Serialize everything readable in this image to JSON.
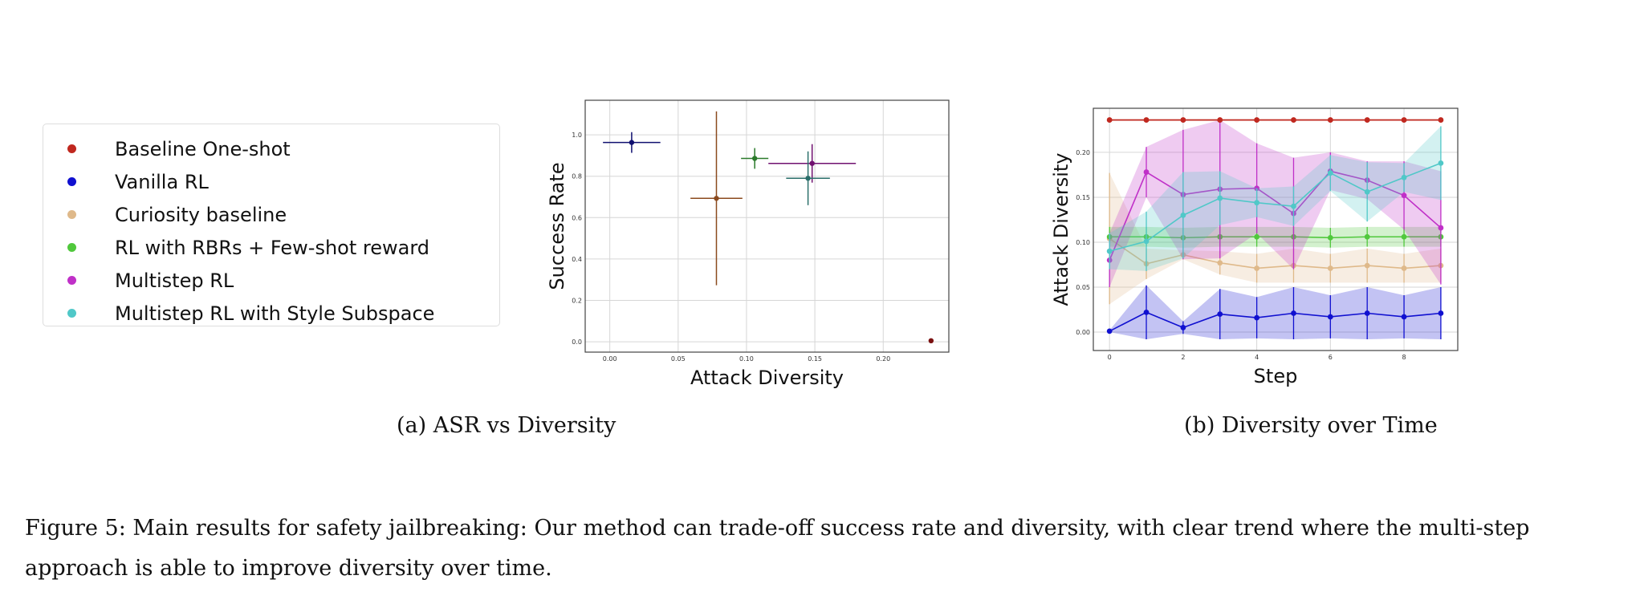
{
  "legend": [
    {
      "label": "Baseline One-shot",
      "color": "#c0281f"
    },
    {
      "label": "Vanilla RL",
      "color": "#1010d0"
    },
    {
      "label": "Curiosity baseline",
      "color": "#dfb98a"
    },
    {
      "label": "RL with RBRs + Few-shot reward",
      "color": "#50c83c"
    },
    {
      "label": "Multistep RL",
      "color": "#c030c8"
    },
    {
      "label": "Multistep RL with Style Subspace",
      "color": "#50c8c8"
    }
  ],
  "captions": {
    "a": "(a) ASR vs Diversity",
    "b": "(b) Diversity over Time",
    "figure": "Figure 5: Main results for safety jailbreaking: Our method can trade-off success rate and diversity, with clear trend where the multi-step approach is able to improve diversity over time."
  },
  "chart_data": [
    {
      "type": "scatter",
      "title": "ASR vs Diversity",
      "xlabel": "Attack Diversity",
      "ylabel": "Success Rate",
      "xlim": [
        -0.018,
        0.248
      ],
      "ylim": [
        -0.05,
        1.167
      ],
      "xticks": [
        0.0,
        0.05,
        0.1,
        0.15,
        0.2
      ],
      "xtick_labels": [
        "0.00",
        "0.05",
        "0.10",
        "0.15",
        "0.20"
      ],
      "yticks": [
        0.0,
        0.2,
        0.4,
        0.6,
        0.8,
        1.0
      ],
      "ytick_labels": [
        "0.0",
        "0.2",
        "0.4",
        "0.6",
        "0.8",
        "1.0"
      ],
      "grid": true,
      "points": [
        {
          "series": "Baseline One-shot",
          "x": 0.235,
          "y": 0.005,
          "xerr": 0,
          "yerr": 0,
          "color": "#7a1010"
        },
        {
          "series": "Vanilla RL",
          "x": 0.016,
          "y": 0.963,
          "xerr": 0.021,
          "yerr": 0.05,
          "color": "#101070"
        },
        {
          "series": "Curiosity baseline",
          "x": 0.078,
          "y": 0.693,
          "xerr": 0.019,
          "yerr": 0.42,
          "color": "#8b4a1e"
        },
        {
          "series": "RL with RBRs + Few-shot reward",
          "x": 0.106,
          "y": 0.886,
          "xerr": 0.01,
          "yerr": 0.05,
          "color": "#2a7a2a"
        },
        {
          "series": "Multistep RL",
          "x": 0.148,
          "y": 0.862,
          "xerr": 0.032,
          "yerr": 0.093,
          "color": "#701070"
        },
        {
          "series": "Multistep RL with Style Subspace",
          "x": 0.145,
          "y": 0.79,
          "xerr": 0.016,
          "yerr": 0.13,
          "color": "#2a6e6a"
        }
      ]
    },
    {
      "type": "line",
      "title": "Diversity over Time",
      "xlabel": "Step",
      "ylabel": "Attack Diversity",
      "xlim": [
        -0.44,
        9.46
      ],
      "ylim": [
        -0.0205,
        0.249
      ],
      "xticks": [
        0,
        2,
        4,
        6,
        8
      ],
      "xtick_labels": [
        "0",
        "2",
        "4",
        "6",
        "8"
      ],
      "yticks": [
        0.0,
        0.05,
        0.1,
        0.15,
        0.2
      ],
      "ytick_labels": [
        "0.00",
        "0.05",
        "0.10",
        "0.15",
        "0.20"
      ],
      "grid": true,
      "x": [
        0,
        1,
        2,
        3,
        4,
        5,
        6,
        7,
        8,
        9
      ],
      "series": [
        {
          "name": "Vanilla RL",
          "color": "#1010d0",
          "values": [
            0.001,
            0.022,
            0.005,
            0.02,
            0.016,
            0.021,
            0.017,
            0.021,
            0.017,
            0.021
          ],
          "err": [
            0.001,
            0.03,
            0.007,
            0.028,
            0.023,
            0.029,
            0.024,
            0.029,
            0.024,
            0.029
          ]
        },
        {
          "name": "Curiosity baseline",
          "color": "#dfb98a",
          "values": [
            0.104,
            0.076,
            0.086,
            0.077,
            0.071,
            0.074,
            0.071,
            0.074,
            0.071,
            0.074
          ],
          "err": [
            0.073,
            0.017,
            0.005,
            0.013,
            0.016,
            0.019,
            0.016,
            0.019,
            0.016,
            0.019
          ]
        },
        {
          "name": "RL with RBRs + Few-shot reward",
          "color": "#50c83c",
          "values": [
            0.106,
            0.106,
            0.105,
            0.106,
            0.106,
            0.106,
            0.105,
            0.106,
            0.106,
            0.106
          ],
          "err": [
            0.011,
            0.011,
            0.011,
            0.011,
            0.011,
            0.011,
            0.011,
            0.011,
            0.011,
            0.011
          ]
        },
        {
          "name": "Multistep RL",
          "color": "#c030c8",
          "values": [
            0.08,
            0.178,
            0.153,
            0.159,
            0.16,
            0.132,
            0.179,
            0.169,
            0.152,
            0.116
          ],
          "err": [
            0.03,
            0.028,
            0.072,
            0.077,
            0.05,
            0.062,
            0.021,
            0.021,
            0.038,
            0.063
          ]
        },
        {
          "name": "Multistep RL with Style Subspace",
          "color": "#50c8c8",
          "values": [
            0.09,
            0.101,
            0.13,
            0.149,
            0.144,
            0.14,
            0.177,
            0.156,
            0.172,
            0.188
          ],
          "err": [
            0.02,
            0.033,
            0.048,
            0.03,
            0.016,
            0.022,
            0.02,
            0.033,
            0.016,
            0.041
          ]
        },
        {
          "name": "Baseline One-shot",
          "color": "#c0281f",
          "values": [
            0.236,
            0.236,
            0.236,
            0.236,
            0.236,
            0.236,
            0.236,
            0.236,
            0.236,
            0.236
          ],
          "err": [
            0.001,
            0.001,
            0.001,
            0.001,
            0.001,
            0.001,
            0.001,
            0.001,
            0.001,
            0.001
          ]
        }
      ]
    }
  ]
}
